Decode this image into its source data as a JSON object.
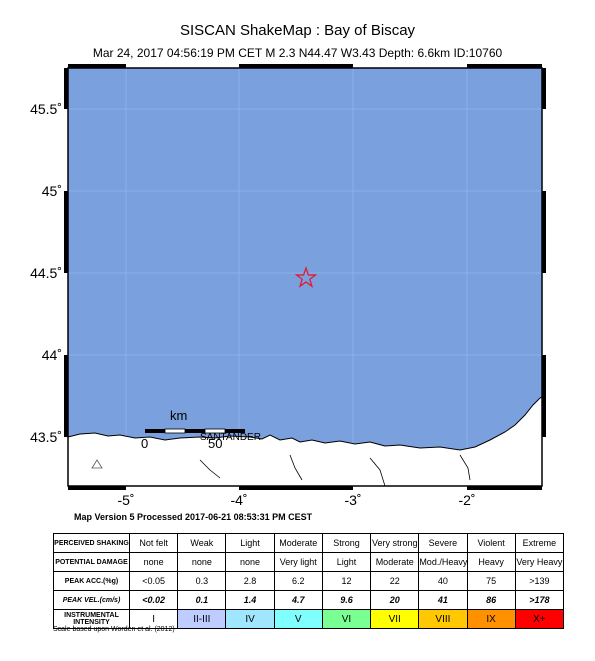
{
  "header": {
    "title": "SISCAN ShakeMap : Bay of Biscay",
    "event_line": "Mar 24, 2017 04:56:19 PM CET   M 2.3   N44.47 W3.43   Depth: 6.6km   ID:10760"
  },
  "map": {
    "lat_labels": [
      "45.5˚",
      "45˚",
      "44.5˚",
      "44˚",
      "43.5˚"
    ],
    "lon_labels": [
      "-5˚",
      "-4˚",
      "-3˚",
      "-2˚"
    ],
    "scale_bar": {
      "unit": "km",
      "zero": "0",
      "max": "50"
    },
    "city_label": "SANTANDER",
    "epicenter": {
      "lat": 44.47,
      "lon": -3.43
    },
    "colors": {
      "sea": "#7aa0de",
      "land": "#ffffff",
      "epicenter": "#e8142a"
    }
  },
  "footer": {
    "version_text": "Map Version 5 Processed 2017-06-21 08:53:31 PM CEST",
    "scale_note": "Scale based upon Worden et al. (2012)"
  },
  "legend": {
    "row_headers": {
      "shaking": "PERCEIVED SHAKING",
      "damage": "POTENTIAL DAMAGE",
      "acc": "PEAK ACC.(%g)",
      "vel": "PEAK VEL.(cm/s)",
      "intensity": "INSTRUMENTAL INTENSITY"
    },
    "shaking": [
      "Not felt",
      "Weak",
      "Light",
      "Moderate",
      "Strong",
      "Very strong",
      "Severe",
      "Violent",
      "Extreme"
    ],
    "damage": [
      "none",
      "none",
      "none",
      "Very light",
      "Light",
      "Moderate",
      "Mod./Heavy",
      "Heavy",
      "Very Heavy"
    ],
    "acc": [
      "<0.05",
      "0.3",
      "2.8",
      "6.2",
      "12",
      "22",
      "40",
      "75",
      ">139"
    ],
    "vel": [
      "<0.02",
      "0.1",
      "1.4",
      "4.7",
      "9.6",
      "20",
      "41",
      "86",
      ">178"
    ],
    "intensity": [
      "I",
      "II-III",
      "IV",
      "V",
      "VI",
      "VII",
      "VIII",
      "IX",
      "X+"
    ],
    "intensity_colors": [
      "#ffffff",
      "#bfccff",
      "#a0e6ff",
      "#80ffff",
      "#7aff93",
      "#ffff00",
      "#ffc800",
      "#ff9100",
      "#ff0000"
    ]
  }
}
